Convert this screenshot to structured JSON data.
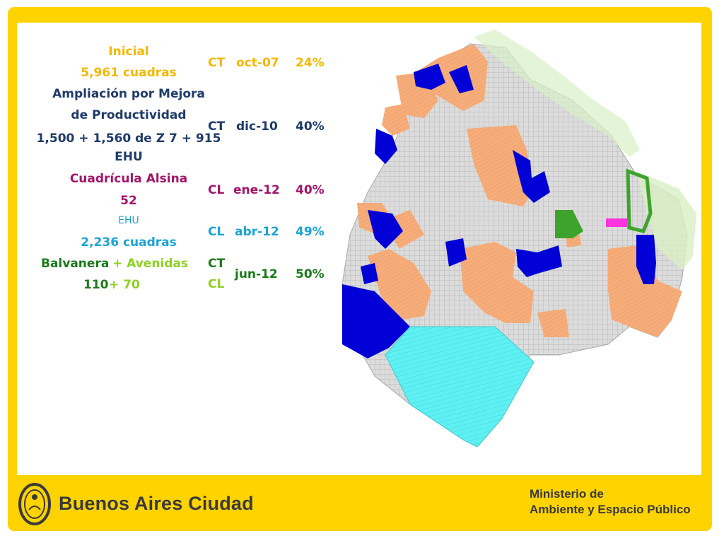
{
  "rows": [
    {
      "lines": [
        "Inicial",
        "5,961 cuadras"
      ],
      "type": "CT",
      "date": "oct-07",
      "pct": "24%"
    },
    {
      "lines": [
        "Ampliación por Mejora",
        "de Productividad",
        "1,500 + 1,560 de Z 7 + 915",
        "EHU"
      ],
      "type": "CT",
      "date": "dic-10",
      "pct": "40%"
    },
    {
      "lines": [
        "Cuadrícula Alsina",
        "52"
      ],
      "type": "CL",
      "date": "ene-12",
      "pct": "40%"
    },
    {
      "lines": [
        "EHU",
        "2,236 cuadras"
      ],
      "type": "CL",
      "date": "abr-12",
      "pct": "49%"
    },
    {
      "lines_a": [
        "Balvanera",
        "110"
      ],
      "lines_b": [
        "+ Avenidas",
        "+ 70"
      ],
      "type_a": "CT",
      "type_b": "CL",
      "date": "jun-12",
      "pct": "50%"
    }
  ],
  "colors": {
    "frame": "#fed300",
    "inicial": "#f5b800",
    "mejora": "#1f3b6a",
    "alsina": "#a3156a",
    "ehu": "#1ba3d6",
    "balvanera": "#1a7a1a",
    "avenidas": "#8ed123",
    "map_orange": "#f6ad7a",
    "map_blue": "#0000d6",
    "map_cyan": "#5ef0f2",
    "map_green": "#3ea32d",
    "map_magenta": "#ff33dd"
  },
  "footer": {
    "brand": "Buenos Aires Ciudad",
    "ministry_1": "Ministerio de",
    "ministry_2": "Ambiente y Espacio Público"
  }
}
